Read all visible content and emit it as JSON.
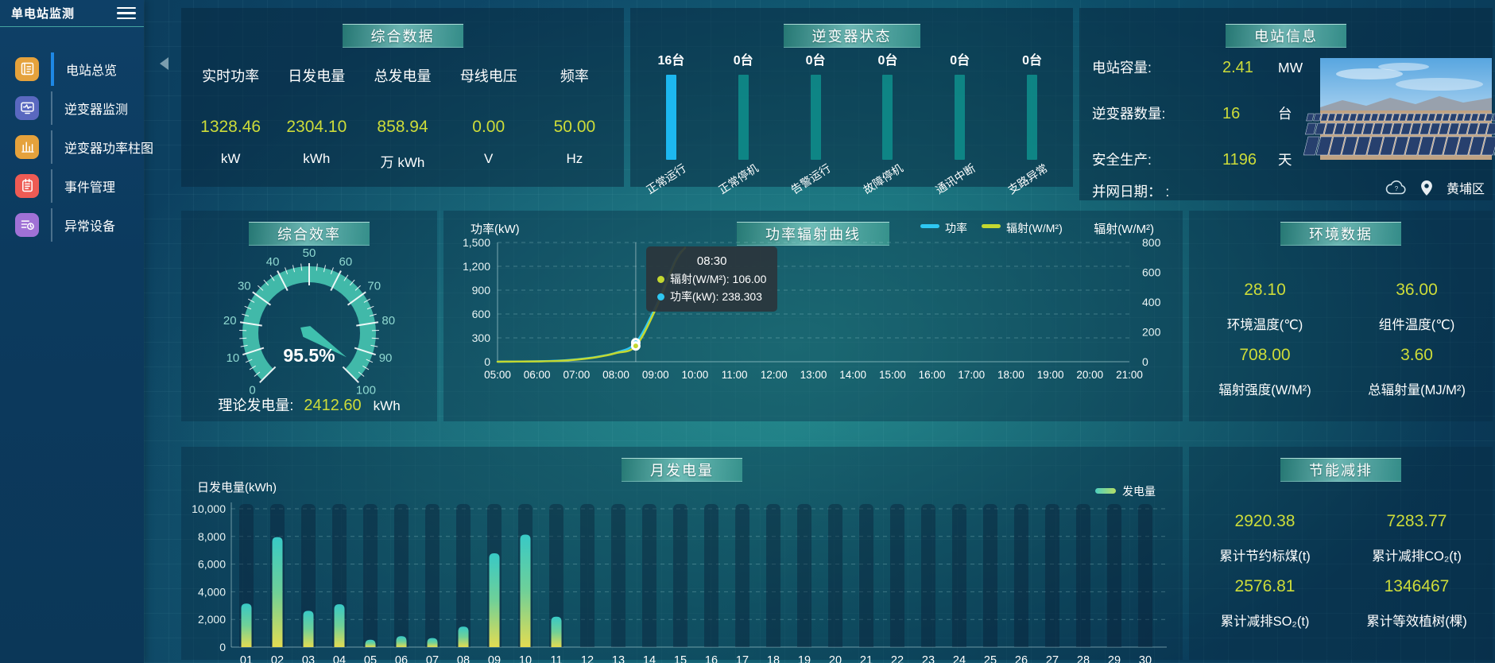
{
  "app": {
    "title": "单电站监测"
  },
  "sidebar": {
    "items": [
      {
        "name": "station-overview",
        "label": "电站总览",
        "icon": "overview",
        "icon_color": "#e5a23c",
        "active": true
      },
      {
        "name": "inverter-monitor",
        "label": "逆变器监测",
        "icon": "monitor",
        "icon_color": "#5a68c0",
        "active": false
      },
      {
        "name": "inverter-power-bars",
        "label": "逆变器功率柱图",
        "icon": "bars",
        "icon_color": "#e5a23c",
        "active": false
      },
      {
        "name": "event-management",
        "label": "事件管理",
        "icon": "event",
        "icon_color": "#ee5b54",
        "active": false
      },
      {
        "name": "abnormal-devices",
        "label": "异常设备",
        "icon": "abnormal",
        "icon_color": "#a071d6",
        "active": false
      }
    ]
  },
  "summary": {
    "title": "综合数据",
    "metrics": [
      {
        "label": "实时功率",
        "value": "1328.46",
        "unit": "kW"
      },
      {
        "label": "日发电量",
        "value": "2304.10",
        "unit": "kWh"
      },
      {
        "label": "总发电量",
        "value": "858.94",
        "unit": "万 kWh"
      },
      {
        "label": "母线电压",
        "value": "0.00",
        "unit": "V"
      },
      {
        "label": "频率",
        "value": "50.00",
        "unit": "Hz"
      }
    ]
  },
  "inverter_status": {
    "title": "逆变器状态",
    "bars": [
      {
        "count": "16台",
        "label": "正常运行",
        "highlight": true
      },
      {
        "count": "0台",
        "label": "正常停机",
        "highlight": false
      },
      {
        "count": "0台",
        "label": "告警运行",
        "highlight": false
      },
      {
        "count": "0台",
        "label": "故障停机",
        "highlight": false
      },
      {
        "count": "0台",
        "label": "通讯中断",
        "highlight": false
      },
      {
        "count": "0台",
        "label": "支路异常",
        "highlight": false
      }
    ],
    "highlight_color": "#1db8f0",
    "bar_color": "rgba(14,140,138,0.9)"
  },
  "station_info": {
    "title": "电站信息",
    "rows": [
      {
        "label": "电站容量:",
        "value": "2.41",
        "unit": "MW"
      },
      {
        "label": "逆变器数量:",
        "value": "16",
        "unit": "台"
      },
      {
        "label": "安全生产:",
        "value": "1196",
        "unit": "天"
      },
      {
        "label": "并网日期： :",
        "value": "",
        "unit": ""
      }
    ],
    "location": "黄埔区"
  },
  "efficiency": {
    "title": "综合效率",
    "theory": {
      "label": "理论发电量:",
      "value": "2412.60",
      "unit": "kWh"
    }
  },
  "power_curve": {
    "title": "功率辐射曲线"
  },
  "environment": {
    "title": "环境数据",
    "metrics": [
      {
        "value": "28.10",
        "label": "环境温度(℃)"
      },
      {
        "value": "36.00",
        "label": "组件温度(℃)"
      },
      {
        "value": "708.00",
        "label": "辐射强度(W/M²)"
      },
      {
        "value": "3.60",
        "label": "总辐射量(MJ/M²)"
      }
    ]
  },
  "monthly": {
    "title": "月发电量"
  },
  "saving": {
    "title": "节能减排",
    "metrics": [
      {
        "value": "2920.38",
        "label": "累计节约标煤(t)"
      },
      {
        "value": "7283.77",
        "label": "累计减排CO₂(t)"
      },
      {
        "value": "2576.81",
        "label": "累计减排SO₂(t)"
      },
      {
        "value": "1346467",
        "label": "累计等效植树(棵)"
      }
    ]
  },
  "chart_data": [
    {
      "id": "efficiency-gauge",
      "type": "gauge",
      "title": "综合效率",
      "value": 95.5,
      "display": "95.5%",
      "min": 0,
      "max": 100,
      "tick_labels": [
        0,
        10,
        20,
        30,
        40,
        50,
        60,
        70,
        80,
        90,
        100
      ],
      "arc_color": "#41b9a9"
    },
    {
      "id": "inverter-status",
      "type": "bar",
      "title": "逆变器状态",
      "categories": [
        "正常运行",
        "正常停机",
        "告警运行",
        "故障停机",
        "通讯中断",
        "支路异常"
      ],
      "values": [
        16,
        0,
        0,
        0,
        0,
        0
      ],
      "unit": "台"
    },
    {
      "id": "power-radiation",
      "type": "line",
      "title": "功率辐射曲线",
      "x_hours": [
        5,
        5.5,
        6,
        6.5,
        7,
        7.5,
        8,
        8.5,
        9,
        9.5,
        9.75
      ],
      "series": [
        {
          "name": "功率",
          "axis": "left",
          "color": "#2ec7f2",
          "values": [
            0,
            2,
            5,
            12,
            30,
            60,
            115,
            238.303,
            690,
            1280,
            1430
          ]
        },
        {
          "name": "辐射(W/M²)",
          "axis": "right",
          "color": "#c3d830",
          "values": [
            0,
            1,
            2,
            5,
            14,
            30,
            58,
            106,
            350,
            670,
            765
          ]
        }
      ],
      "xlabel_ticks": [
        "05:00",
        "06:00",
        "07:00",
        "08:00",
        "09:00",
        "10:00",
        "11:00",
        "12:00",
        "13:00",
        "14:00",
        "15:00",
        "16:00",
        "17:00",
        "18:00",
        "19:00",
        "20:00",
        "21:00"
      ],
      "x_range_hours": [
        5,
        21
      ],
      "ylabel_left": "功率(kW)",
      "ylim_left": [
        0,
        1500
      ],
      "yticks_left": [
        0,
        300,
        600,
        900,
        1200,
        1500
      ],
      "ylabel_right": "辐射(W/M²)",
      "ylim_right": [
        0,
        800
      ],
      "yticks_right": [
        0,
        200,
        400,
        600,
        800
      ],
      "legend": [
        "功率",
        "辐射(W/M²)"
      ],
      "tooltip": {
        "time": "08:30",
        "items": [
          {
            "name": "辐射(W/M²)",
            "value": "106.00",
            "color": "#c3d830"
          },
          {
            "name": "功率(kW)",
            "value": "238.303",
            "color": "#2ec7f2"
          }
        ]
      }
    },
    {
      "id": "monthly-generation",
      "type": "bar",
      "title": "月发电量",
      "legend": "发电量",
      "ylabel": "日发电量(kWh)",
      "ylim": [
        0,
        10000
      ],
      "yticks": [
        0,
        2000,
        4000,
        6000,
        8000,
        10000
      ],
      "categories": [
        "01",
        "02",
        "03",
        "04",
        "05",
        "06",
        "07",
        "08",
        "09",
        "10",
        "11",
        "12",
        "13",
        "14",
        "15",
        "16",
        "17",
        "18",
        "19",
        "20",
        "21",
        "22",
        "23",
        "24",
        "25",
        "26",
        "27",
        "28",
        "29",
        "30"
      ],
      "values": [
        3150,
        7950,
        2620,
        3095,
        535,
        790,
        655,
        1480,
        6780,
        8130,
        2200,
        0,
        0,
        0,
        0,
        0,
        0,
        0,
        0,
        0,
        0,
        0,
        0,
        0,
        0,
        0,
        0,
        0,
        0,
        0
      ]
    }
  ]
}
